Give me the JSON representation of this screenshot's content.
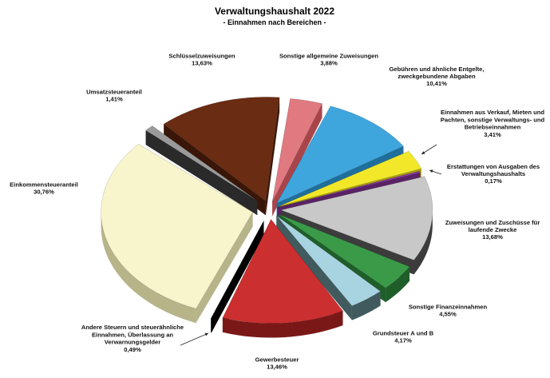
{
  "chart_data": {
    "type": "pie",
    "variant": "exploded-3d",
    "title": "Verwaltungshaushalt 2022",
    "subtitle": "- Einnahmen nach Bereichen -",
    "slices": [
      {
        "name": "Sonstige allgemeine Zuweisungen",
        "name_lines": [
          "Sonstige allgemeine Zuweisungen"
        ],
        "value": 3.88,
        "label": "3,88%",
        "color": "#e07a80",
        "side_color": "#a8454b"
      },
      {
        "name": "Gebühren und ähnliche Entgelte, zweckgebundene Abgaben",
        "name_lines": [
          "Gebühren und ähnliche Entgelte,",
          "zweckgebundene Abgaben"
        ],
        "value": 10.41,
        "label": "10,41%",
        "color": "#3fa5dd",
        "side_color": "#1f6f9c"
      },
      {
        "name": "Einnahmen aus Verkauf, Mieten und Pachten, sonstige Verwaltungs- und Betriebseinnahmen",
        "name_lines": [
          "Einnahmen aus Verkauf, Mieten und",
          "Pachten, sonstige Verwaltungs- und",
          "Betriebseinnahmen"
        ],
        "value": 3.41,
        "label": "3,41%",
        "color": "#f2e829",
        "side_color": "#a9a10e"
      },
      {
        "name": "Erstattungen von Ausgaben des Verwaltungshaushalts",
        "name_lines": [
          "Erstattungen von Ausgaben des",
          "Verwaltungshaushalts"
        ],
        "value": 0.17,
        "label": "0,17%",
        "color": "#8a3a9c",
        "side_color": "#5a2266"
      },
      {
        "name": "Zuweisungen und Zuschüsse für laufende Zwecke",
        "name_lines": [
          "Zuweisungen und Zuschüsse für",
          "laufende Zwecke"
        ],
        "value": 13.68,
        "label": "13,68%",
        "color": "#c8c8c8",
        "side_color": "#3c3c3c"
      },
      {
        "name": "Sonstige Finanzeinnahmen",
        "name_lines": [
          "Sonstige Finanzeinnahmen"
        ],
        "value": 4.55,
        "label": "4,55%",
        "color": "#3a9a48",
        "side_color": "#1f5e29"
      },
      {
        "name": "Grundsteuer A und B",
        "name_lines": [
          "Grundsteuer A und B"
        ],
        "value": 4.17,
        "label": "4,17%",
        "color": "#a8d3e0",
        "side_color": "#405a5e"
      },
      {
        "name": "Gewerbesteuer",
        "name_lines": [
          "Gewerbesteuer"
        ],
        "value": 13.46,
        "label": "13,46%",
        "color": "#cc2f2f",
        "side_color": "#7a1818"
      },
      {
        "name": "Andere Steuern und steuerähnliche Einnahmen, Überlassung an Verwarnungsgelder",
        "name_lines": [
          "Andere Steuern und steuerähnliche",
          "Einnahmen, Überlassung an",
          "Verwarnungsgelder"
        ],
        "value": 0.49,
        "label": "0,49%",
        "color": "#1a1a1a",
        "side_color": "#000000"
      },
      {
        "name": "Einkommensteueranteil",
        "name_lines": [
          "Einkommensteueranteil"
        ],
        "value": 30.76,
        "label": "30,76%",
        "color": "#f8f5cc",
        "side_color": "#b7b48a"
      },
      {
        "name": "Umsatzsteueranteil",
        "name_lines": [
          "Umsatzsteueranteil"
        ],
        "value": 1.41,
        "label": "1,41%",
        "color": "#9a9a9a",
        "side_color": "#2a2a2a"
      },
      {
        "name": "Schlüsselzuweisungen",
        "name_lines": [
          "Schlüsselzuweisungen"
        ],
        "value": 13.63,
        "label": "13,63%",
        "color": "#6a2c12",
        "side_color": "#3a1608"
      }
    ]
  }
}
